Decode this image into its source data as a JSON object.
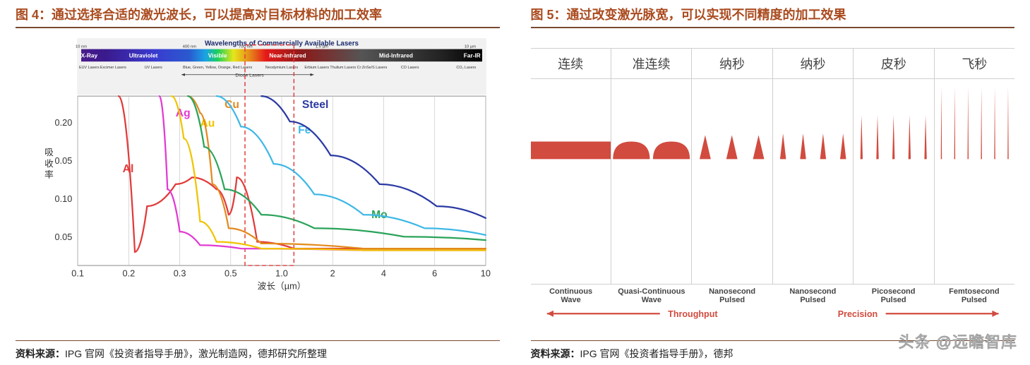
{
  "colors": {
    "title": "#aa4b1f",
    "hr": "#7a4a2f",
    "pulse_fill": "#d14b3f",
    "throughput": "#d14b3f",
    "precision": "#d14b3f",
    "grid": "#d0d0d0"
  },
  "left": {
    "title": "图 4：通过选择合适的激光波长，可以提高对目标材料的加工效率",
    "source_prefix": "资料来源：",
    "source": "IPG 官网《投资者指导手册》，激光制造网，德邦研究所整理",
    "band_title": "Wavelengths of Commercially Available Lasers",
    "bands": [
      {
        "label": "X-Ray",
        "code": "xray"
      },
      {
        "label": "Ultraviolet",
        "code": "uv"
      },
      {
        "label": "Visible",
        "code": "vis"
      },
      {
        "label": "Near-Infrared",
        "code": "nir"
      },
      {
        "label": "Mid-Infrared",
        "code": "mir"
      },
      {
        "label": "Far-IR",
        "code": "fir"
      }
    ],
    "band_top_ticks": [
      "10 nm",
      "400 nm",
      "700 nm",
      "",
      "1.5 µm",
      "",
      "10 µm"
    ],
    "band_top_labels": [
      "",
      "",
      "",
      "Ytterbium Lasers",
      "",
      "Holmium Lasers   Fe:ZnSe/S Lasers",
      ""
    ],
    "band_bot_labels": [
      "EUV Lasers",
      "Excimer Lasers",
      "UV Lasers",
      "Blue, Green, Yellow, Orange, Red Lasers",
      "Neodymium Lasers",
      "Erbium Lasers   Thulium Lasers   Cr:ZnSe/S Lasers",
      "CO Lasers",
      "CO₂ Lasers"
    ],
    "diode_label": "Diode Lasers",
    "y_label": "吸收率",
    "y_ticks": [
      "0.20",
      "0.05",
      "0.10",
      "0.05"
    ],
    "x_label": "波长（µm）",
    "x_ticks": [
      "0.1",
      "0.2",
      "0.3",
      "0.5",
      "1.0",
      "2",
      "4",
      "6",
      "10"
    ],
    "curves": [
      {
        "name": "Al",
        "color": "#e23a3a",
        "label_xy": [
          0.11,
          0.45
        ],
        "pts": [
          [
            0.1,
            0.0
          ],
          [
            0.14,
            0.92
          ],
          [
            0.17,
            0.65
          ],
          [
            0.24,
            0.52
          ],
          [
            0.28,
            0.48
          ],
          [
            0.34,
            0.55
          ],
          [
            0.37,
            0.7
          ],
          [
            0.39,
            0.48
          ],
          [
            0.44,
            0.86
          ],
          [
            0.53,
            0.9
          ],
          [
            0.7,
            0.9
          ],
          [
            1.0,
            0.9
          ]
        ]
      },
      {
        "name": "Ag",
        "color": "#e23ad3",
        "label_xy": [
          0.24,
          0.12
        ],
        "pts": [
          [
            0.2,
            0.0
          ],
          [
            0.22,
            0.55
          ],
          [
            0.25,
            0.8
          ],
          [
            0.3,
            0.88
          ],
          [
            0.4,
            0.9
          ],
          [
            0.7,
            0.91
          ],
          [
            1.0,
            0.91
          ]
        ]
      },
      {
        "name": "Au",
        "color": "#f0c400",
        "label_xy": [
          0.3,
          0.18
        ],
        "pts": [
          [
            0.23,
            0.0
          ],
          [
            0.26,
            0.25
          ],
          [
            0.3,
            0.74
          ],
          [
            0.34,
            0.86
          ],
          [
            0.45,
            0.9
          ],
          [
            0.7,
            0.91
          ],
          [
            1.0,
            0.91
          ]
        ]
      },
      {
        "name": "Cu",
        "color": "#e38a1e",
        "label_xy": [
          0.36,
          0.07
        ],
        "pts": [
          [
            0.27,
            0.0
          ],
          [
            0.3,
            0.1
          ],
          [
            0.33,
            0.52
          ],
          [
            0.37,
            0.78
          ],
          [
            0.45,
            0.87
          ],
          [
            0.7,
            0.9
          ],
          [
            1.0,
            0.9
          ]
        ]
      },
      {
        "name": "Mo",
        "color": "#2aa35a",
        "label_xy": [
          0.72,
          0.72
        ],
        "pts": [
          [
            0.27,
            0.0
          ],
          [
            0.31,
            0.3
          ],
          [
            0.36,
            0.55
          ],
          [
            0.45,
            0.7
          ],
          [
            0.58,
            0.78
          ],
          [
            0.8,
            0.83
          ],
          [
            1.0,
            0.85
          ]
        ]
      },
      {
        "name": "Fe",
        "color": "#3fb8e6",
        "label_xy": [
          0.54,
          0.22
        ],
        "pts": [
          [
            0.34,
            0.0
          ],
          [
            0.4,
            0.18
          ],
          [
            0.48,
            0.4
          ],
          [
            0.58,
            0.58
          ],
          [
            0.7,
            0.7
          ],
          [
            0.85,
            0.78
          ],
          [
            1.0,
            0.82
          ]
        ]
      },
      {
        "name": "Steel",
        "color": "#2a3aa3",
        "label_xy": [
          0.55,
          0.07
        ],
        "pts": [
          [
            0.45,
            0.0
          ],
          [
            0.52,
            0.15
          ],
          [
            0.62,
            0.35
          ],
          [
            0.74,
            0.52
          ],
          [
            0.88,
            0.65
          ],
          [
            1.0,
            0.72
          ]
        ]
      }
    ],
    "highlight_x": [
      0.41,
      0.53
    ]
  },
  "right": {
    "title": "图 5：通过改变激光脉宽，可以实现不同精度的加工效果",
    "source_prefix": "资料来源：",
    "source": "IPG 官网《投资者指导手册》，德邦",
    "cols": [
      {
        "cn": "连续",
        "en": "Continuous Wave",
        "kind": "flat",
        "height": 0.22
      },
      {
        "cn": "准连续",
        "en": "Quasi-Continuous Wave",
        "kind": "bumps",
        "n": 2,
        "height": 0.22
      },
      {
        "cn": "纳秒",
        "en": "Nanosecond Pulsed",
        "kind": "pulses",
        "n": 3,
        "height": 0.3,
        "width": 0.42
      },
      {
        "cn": "纳秒",
        "en": "Nanosecond Pulsed",
        "kind": "pulses",
        "n": 4,
        "height": 0.32,
        "width": 0.3
      },
      {
        "cn": "皮秒",
        "en": "Picosecond Pulsed",
        "kind": "pulses",
        "n": 5,
        "height": 0.55,
        "width": 0.15
      },
      {
        "cn": "飞秒",
        "en": "Femtosecond Pulsed",
        "kind": "pulses",
        "n": 6,
        "height": 0.9,
        "width": 0.08
      }
    ],
    "arrow_left": "Throughput",
    "arrow_right": "Precision"
  },
  "watermark": "头条 @远瞻智库"
}
